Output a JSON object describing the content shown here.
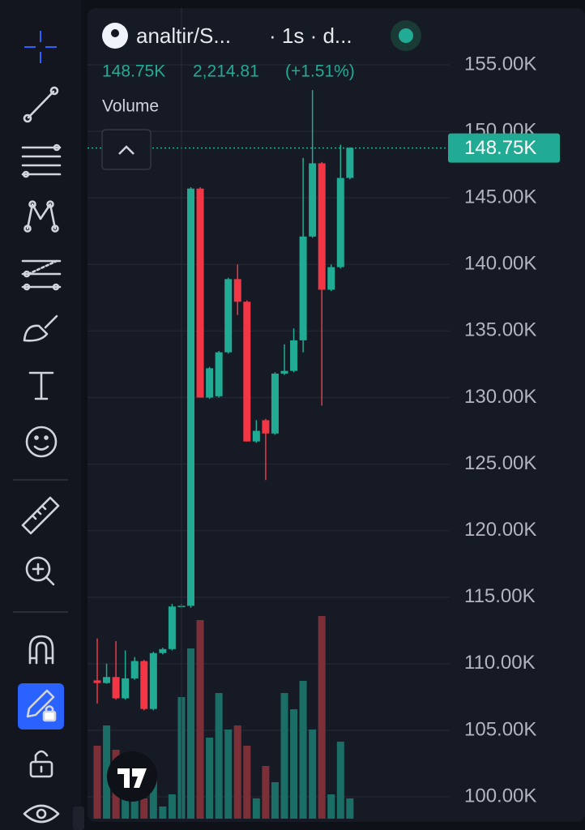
{
  "header": {
    "symbol": "analtir/S...",
    "interval": "· 1s · d...",
    "change": "2,214.81",
    "change_pct": "(+1.51%)",
    "volume_label": "Volume"
  },
  "chart_data": {
    "type": "candlestick",
    "open": [
      108750,
      108550,
      109000,
      107400,
      108900,
      110200,
      106600,
      110800,
      111100,
      114300,
      114350,
      145700,
      130000,
      130100,
      133400,
      138900,
      137200,
      126700,
      128300,
      127300,
      131800,
      132000,
      134300,
      142100,
      147600,
      138100,
      139800,
      146500
    ],
    "high": [
      111900,
      110000,
      111700,
      111000,
      110500,
      110300,
      110900,
      111200,
      114500,
      114500,
      145800,
      145800,
      132300,
      133500,
      139000,
      140000,
      137300,
      128300,
      128400,
      131900,
      134000,
      135200,
      148000,
      153100,
      147700,
      140000,
      149000,
      148800
    ],
    "low": [
      107000,
      108500,
      107300,
      107300,
      108800,
      106500,
      106500,
      110700,
      111000,
      114200,
      114200,
      130000,
      129900,
      130000,
      133300,
      136200,
      126700,
      126600,
      123800,
      127200,
      131700,
      131900,
      133400,
      142000,
      129400,
      138000,
      139700,
      146400
    ],
    "close": [
      108550,
      109000,
      107400,
      108900,
      110200,
      106600,
      110800,
      111100,
      114300,
      114350,
      145700,
      130000,
      132200,
      133400,
      138900,
      137200,
      126700,
      127500,
      127300,
      131800,
      132000,
      134300,
      142100,
      147600,
      138100,
      139800,
      146500,
      148750
    ],
    "volume": [
      90,
      115,
      85,
      25,
      45,
      25,
      50,
      15,
      30,
      150,
      210,
      245,
      100,
      155,
      110,
      115,
      90,
      25,
      65,
      45,
      155,
      135,
      170,
      110,
      250,
      30,
      95,
      25
    ],
    "vlim": [
      0,
      300
    ],
    "up_color": "#22ab94",
    "down_color": "#f23645",
    "up_volume_color": "#1b6e66",
    "down_volume_color": "#7c2f37",
    "ylim": [
      98360,
      159870
    ],
    "yticks": [
      {
        "value": 100000,
        "label": "100.00K"
      },
      {
        "value": 105000,
        "label": "105.00K"
      },
      {
        "value": 110000,
        "label": "110.00K"
      },
      {
        "value": 115000,
        "label": "115.00K"
      },
      {
        "value": 120000,
        "label": "120.00K"
      },
      {
        "value": 125000,
        "label": "125.00K"
      },
      {
        "value": 130000,
        "label": "130.00K"
      },
      {
        "value": 135000,
        "label": "135.00K"
      },
      {
        "value": 140000,
        "label": "140.00K"
      },
      {
        "value": 145000,
        "label": "145.00K"
      },
      {
        "value": 150000,
        "label": "150.00K"
      },
      {
        "value": 155000,
        "label": "155.00K"
      }
    ],
    "grid": true,
    "last_price": {
      "value": 148750,
      "label": "148.75K"
    }
  }
}
